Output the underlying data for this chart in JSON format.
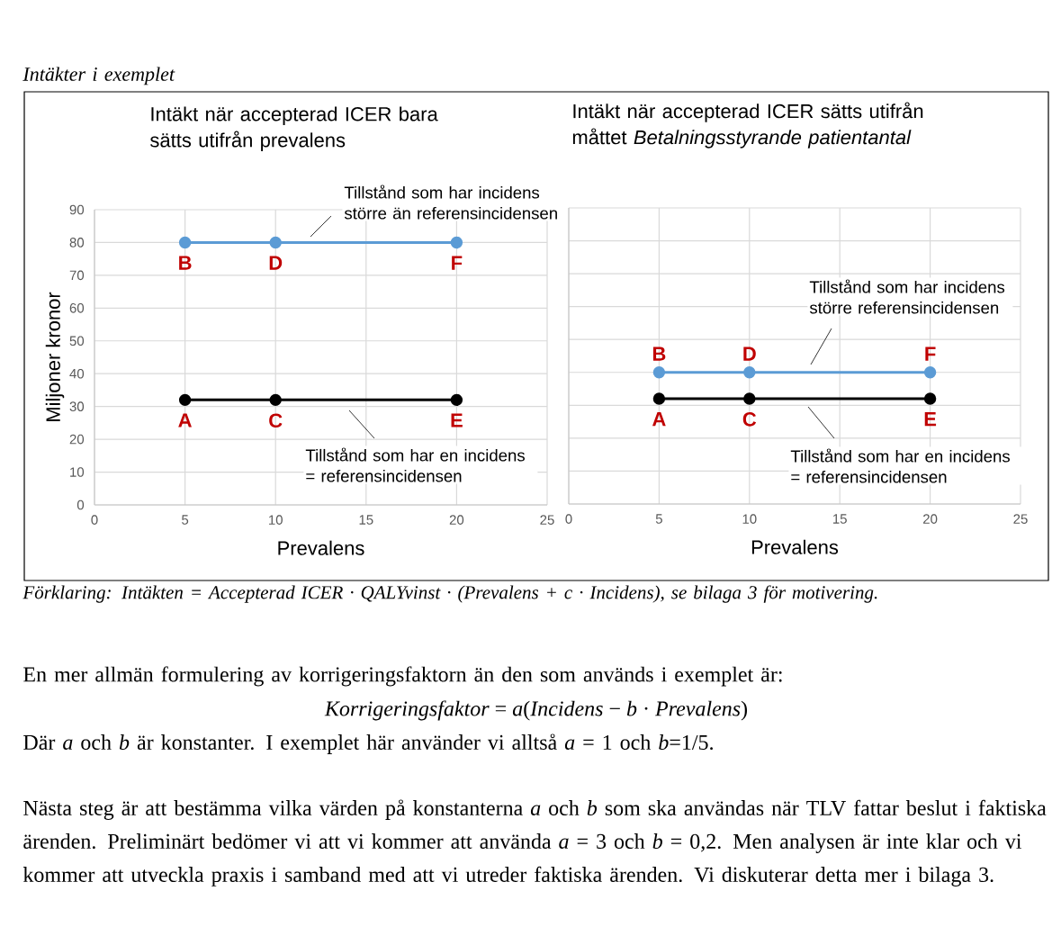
{
  "chart_data": [
    {
      "type": "line",
      "title": "Intäkt när accepterad ICER bara sätts utifrån prevalens",
      "xlabel": "Prevalens",
      "ylabel": "Miljoner kronor",
      "x": [
        5,
        10,
        20
      ],
      "series": [
        {
          "color": "#5b9bd5",
          "values": [
            80,
            80,
            80
          ]
        },
        {
          "color": "#000000",
          "values": [
            32,
            32,
            32
          ]
        }
      ],
      "xlim": [
        0,
        25
      ],
      "xticks": [
        0,
        5,
        10,
        15,
        20,
        25
      ],
      "ylim": [
        0,
        90
      ],
      "yticks": [
        0,
        10,
        20,
        30,
        40,
        50,
        60,
        70,
        80,
        90
      ],
      "grid": true,
      "marker": "circle",
      "line_style": "solid",
      "annotations": [
        "Intäkter i exemplet",
        "Tillstånd som har incidens större än referensincidensen",
        "Tillstånd som har en incidens = referensincidensen",
        {
          "text": "B",
          "x": 5,
          "y": 80
        },
        {
          "text": "D",
          "x": 10,
          "y": 80
        },
        {
          "text": "F",
          "x": 20,
          "y": 80
        },
        {
          "text": "A",
          "x": 5,
          "y": 32
        },
        {
          "text": "C",
          "x": 10,
          "y": 32
        },
        {
          "text": "E",
          "x": 20,
          "y": 32
        },
        "Förklaring: Intäkten = Accepterad ICER · QALYvinst · (Prevalens + c · Incidens), se bilaga 3 för motivering.",
        "En mer allmän formulering av korrigeringsfaktorn än den som används i exemplet är:",
        "*Korrigeringsfaktor* = *a*(*Incidens* − *b* · *Prevalens*)",
        "Där *a* och *b* är konstanter. I exemplet här använder vi alltså *a* = 1 och *b*=1/5.",
        "Nästa steg är att bestämma vilka värden på konstanterna *a* och *b* som ska användas när TLV fattar beslut i faktiska ärenden. Preliminärt bedömer vi att vi kommer att använda *a* = 3 och *b* = 0,2. Men analysen är inte klar och vi kommer att utveckla praxis i samband med att vi utreder faktiska ärenden. Vi diskuterar detta mer i bilaga 3."
      ]
    },
    {
      "type": "line",
      "title": "Intäkt när accepterad ICER sätts utifrån måttet *Betalningsstyrande patientantal*",
      "xlabel": "Prevalens",
      "x": [
        5,
        10,
        20
      ],
      "series": [
        {
          "color": "#5b9bd5",
          "values": [
            40,
            40,
            40
          ]
        },
        {
          "color": "#000000",
          "values": [
            32,
            32,
            32
          ]
        }
      ],
      "xlim": [
        0,
        25
      ],
      "xticks": [
        0,
        5,
        10,
        15,
        20,
        25
      ],
      "ylim": [
        0,
        90
      ],
      "yticks": [
        0,
        10,
        20,
        30,
        40,
        50,
        60,
        70,
        80,
        90
      ],
      "tick_labels": "x",
      "grid": true,
      "marker": "circle",
      "line_style": "solid",
      "annotations": [
        "Tillstånd som har incidens större referensincidensen",
        "Tillstånd som har en incidens = referensincidensen",
        {
          "text": "B",
          "x": 5,
          "y": 40
        },
        {
          "text": "D",
          "x": 10,
          "y": 40
        },
        {
          "text": "F",
          "x": 20,
          "y": 40
        },
        {
          "text": "A",
          "x": 5,
          "y": 32
        },
        {
          "text": "C",
          "x": 10,
          "y": 32
        },
        {
          "text": "E",
          "x": 20,
          "y": 32
        }
      ]
    }
  ]
}
